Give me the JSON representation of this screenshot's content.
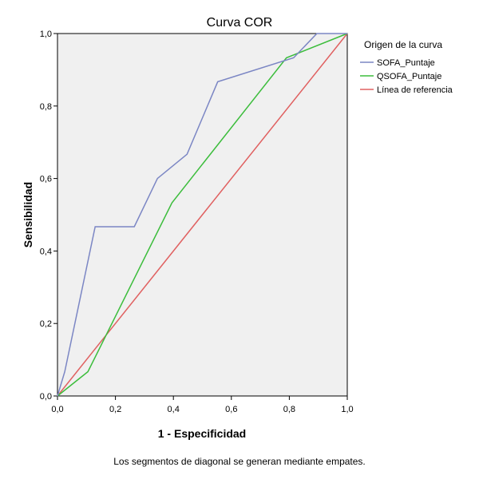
{
  "chart_data": {
    "type": "line",
    "title": "Curva COR",
    "xlabel": "1 - Especificidad",
    "ylabel": "Sensibilidad",
    "xlim": [
      0,
      1
    ],
    "ylim": [
      0,
      1
    ],
    "x_ticks": [
      "0,0",
      "0,2",
      "0,4",
      "0,6",
      "0,8",
      "1,0"
    ],
    "y_ticks": [
      "0,0",
      "0,2",
      "0,4",
      "0,6",
      "0,8",
      "1,0"
    ],
    "grid": false,
    "background_color": "#f0f0f0",
    "legend": {
      "title": "Origen de la curva",
      "position": "right"
    },
    "series": [
      {
        "name": "SOFA_Puntaje",
        "color": "#7b86c4",
        "points": [
          [
            0,
            0
          ],
          [
            0.025,
            0.067
          ],
          [
            0.13,
            0.467
          ],
          [
            0.265,
            0.467
          ],
          [
            0.345,
            0.6
          ],
          [
            0.447,
            0.667
          ],
          [
            0.553,
            0.867
          ],
          [
            0.815,
            0.933
          ],
          [
            0.895,
            1.0
          ],
          [
            1.0,
            1.0
          ]
        ]
      },
      {
        "name": "QSOFA_Puntaje",
        "color": "#3cbd3c",
        "points": [
          [
            0,
            0
          ],
          [
            0.105,
            0.067
          ],
          [
            0.395,
            0.533
          ],
          [
            0.79,
            0.933
          ],
          [
            1.0,
            1.0
          ]
        ]
      },
      {
        "name": "Línea de referencia",
        "color": "#e06060",
        "points": [
          [
            0,
            0
          ],
          [
            1,
            1
          ]
        ]
      }
    ],
    "footnote": "Los segmentos de diagonal se generan mediante empates."
  }
}
